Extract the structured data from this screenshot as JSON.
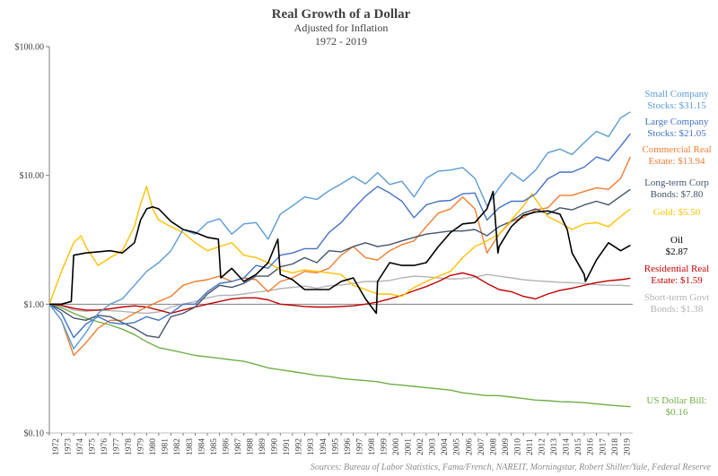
{
  "chart_data": {
    "type": "line",
    "title": "Real Growth of a Dollar",
    "subtitle": "Adjusted for Inflation",
    "period": "1972 - 2019",
    "source": "Sources: Bureau of Labor Statistics, Fama/French, NAREIT, Morningstar, Robert Shiller/Yale, Federal Reserve",
    "y_scale": "log",
    "ylim": [
      0.1,
      100
    ],
    "y_ticks": [
      "$0.10",
      "$1.00",
      "$10.00",
      "$100.00"
    ],
    "x_ticks": [
      "1972",
      "1973",
      "1974",
      "1975",
      "1976",
      "1977",
      "1978",
      "1979",
      "1980",
      "1981",
      "1982",
      "1983",
      "1984",
      "1985",
      "1986",
      "1987",
      "1988",
      "1989",
      "1990",
      "1991",
      "1992",
      "1993",
      "1994",
      "1995",
      "1996",
      "1997",
      "1998",
      "1999",
      "2000",
      "2001",
      "2002",
      "2003",
      "2004",
      "2005",
      "2006",
      "2007",
      "2008",
      "2009",
      "2010",
      "2011",
      "2012",
      "2013",
      "2014",
      "2015",
      "2016",
      "2017",
      "2018",
      "2019"
    ],
    "grid": false,
    "legend": "inline labels at right",
    "series": [
      {
        "name": "Small Company Stocks",
        "label_lines": [
          "Small Company",
          "Stocks: $31.15"
        ],
        "color": "#5b9bd5",
        "x": [
          1972,
          1973,
          1974,
          1975,
          1976,
          1977,
          1978,
          1979,
          1980,
          1981,
          1982,
          1983,
          1984,
          1985,
          1986,
          1987,
          1988,
          1989,
          1990,
          1991,
          1992,
          1993,
          1994,
          1995,
          1996,
          1997,
          1998,
          1999,
          2000,
          2001,
          2002,
          2003,
          2004,
          2005,
          2006,
          2007,
          2008,
          2009,
          2010,
          2011,
          2012,
          2013,
          2014,
          2015,
          2016,
          2017,
          2018,
          2019,
          2019.8
        ],
        "y": [
          1.0,
          0.75,
          0.45,
          0.6,
          0.85,
          1.0,
          1.1,
          1.4,
          1.8,
          2.1,
          2.6,
          3.8,
          3.5,
          4.3,
          4.6,
          3.5,
          4.2,
          4.3,
          3.2,
          5.0,
          5.8,
          6.8,
          6.5,
          7.6,
          8.6,
          9.8,
          8.6,
          10.5,
          8.5,
          9.0,
          6.8,
          9.5,
          10.8,
          11.0,
          11.5,
          9.5,
          5.8,
          8.0,
          10.5,
          9.0,
          11.0,
          15.0,
          16.0,
          14.5,
          18.0,
          22.0,
          20.0,
          28.0,
          31.15
        ]
      },
      {
        "name": "Large Company Stocks",
        "label_lines": [
          "Large Company",
          "Stocks: $21.05"
        ],
        "color": "#4472c4",
        "x": [
          1972,
          1973,
          1974,
          1975,
          1976,
          1977,
          1978,
          1979,
          1980,
          1981,
          1982,
          1983,
          1984,
          1985,
          1986,
          1987,
          1988,
          1989,
          1990,
          1991,
          1992,
          1993,
          1994,
          1995,
          1996,
          1997,
          1998,
          1999,
          2000,
          2001,
          2002,
          2003,
          2004,
          2005,
          2006,
          2007,
          2008,
          2009,
          2010,
          2011,
          2012,
          2013,
          2014,
          2015,
          2016,
          2017,
          2018,
          2019,
          2019.8
        ],
        "y": [
          1.0,
          0.85,
          0.55,
          0.7,
          0.8,
          0.72,
          0.7,
          0.72,
          0.8,
          0.75,
          0.85,
          1.0,
          1.0,
          1.25,
          1.45,
          1.5,
          1.6,
          2.0,
          1.9,
          2.4,
          2.5,
          2.7,
          2.7,
          3.6,
          4.3,
          5.5,
          6.9,
          8.2,
          7.3,
          6.3,
          4.7,
          5.9,
          6.3,
          6.4,
          7.2,
          7.3,
          4.5,
          5.6,
          6.3,
          6.3,
          7.2,
          9.4,
          10.6,
          10.6,
          11.6,
          13.9,
          13.0,
          16.9,
          21.05
        ]
      },
      {
        "name": "Commercial Real Estate",
        "label_lines": [
          "Commercial Real",
          "Estate: $13.94"
        ],
        "color": "#ed7d31",
        "x": [
          1972,
          1973,
          1974,
          1975,
          1976,
          1977,
          1978,
          1979,
          1980,
          1981,
          1982,
          1983,
          1984,
          1985,
          1986,
          1987,
          1988,
          1989,
          1990,
          1991,
          1992,
          1993,
          1994,
          1995,
          1996,
          1997,
          1998,
          1999,
          2000,
          2001,
          2002,
          2003,
          2004,
          2005,
          2006,
          2007,
          2008,
          2009,
          2010,
          2011,
          2012,
          2013,
          2014,
          2015,
          2016,
          2017,
          2018,
          2019,
          2019.8
        ],
        "y": [
          1.0,
          0.75,
          0.4,
          0.5,
          0.65,
          0.75,
          0.75,
          0.85,
          0.95,
          1.05,
          1.15,
          1.4,
          1.5,
          1.55,
          1.65,
          1.5,
          1.6,
          1.55,
          1.25,
          1.5,
          1.6,
          1.8,
          1.75,
          1.9,
          2.4,
          2.8,
          2.3,
          2.2,
          2.6,
          2.9,
          3.1,
          4.0,
          5.1,
          5.5,
          6.8,
          5.5,
          2.5,
          3.5,
          4.4,
          4.7,
          5.4,
          5.6,
          7.0,
          7.0,
          7.5,
          8.0,
          7.8,
          9.5,
          13.94
        ]
      },
      {
        "name": "Long-term Corp Bonds",
        "label_lines": [
          "Long-term Corp",
          "Bonds: $7.80"
        ],
        "color": "#44546a",
        "x": [
          1972,
          1973,
          1974,
          1975,
          1976,
          1977,
          1978,
          1979,
          1980,
          1981,
          1982,
          1983,
          1984,
          1985,
          1986,
          1987,
          1988,
          1989,
          1990,
          1991,
          1992,
          1993,
          1994,
          1995,
          1996,
          1997,
          1998,
          1999,
          2000,
          2001,
          2002,
          2003,
          2004,
          2005,
          2006,
          2007,
          2008,
          2009,
          2010,
          2011,
          2012,
          2013,
          2014,
          2015,
          2016,
          2017,
          2018,
          2019,
          2019.8
        ],
        "y": [
          1.0,
          0.9,
          0.78,
          0.75,
          0.82,
          0.8,
          0.72,
          0.65,
          0.57,
          0.55,
          0.8,
          0.85,
          0.95,
          1.2,
          1.4,
          1.35,
          1.45,
          1.65,
          1.65,
          1.95,
          2.05,
          2.3,
          2.1,
          2.6,
          2.55,
          2.8,
          3.0,
          2.8,
          2.9,
          3.1,
          3.3,
          3.5,
          3.6,
          3.7,
          3.7,
          3.8,
          3.4,
          4.0,
          4.4,
          5.1,
          5.5,
          5.0,
          5.6,
          5.4,
          5.9,
          6.3,
          5.9,
          6.9,
          7.8
        ]
      },
      {
        "name": "Gold",
        "label_lines": [
          "Gold: $5.50"
        ],
        "color": "#ffc000",
        "x": [
          1972,
          1973,
          1974,
          1974.6,
          1975,
          1976,
          1977,
          1978,
          1979,
          1979.5,
          1980,
          1980.5,
          1981,
          1982,
          1983,
          1984,
          1985,
          1986,
          1987,
          1988,
          1989,
          1990,
          1991,
          1992,
          1993,
          1994,
          1995,
          1996,
          1997,
          1998,
          1999,
          2000,
          2001,
          2002,
          2003,
          2004,
          2005,
          2006,
          2007,
          2008,
          2009,
          2010,
          2011,
          2011.7,
          2012,
          2013,
          2014,
          2015,
          2016,
          2017,
          2018,
          2019,
          2019.8
        ],
        "y": [
          1.0,
          1.8,
          3.0,
          3.4,
          2.8,
          2.0,
          2.3,
          2.6,
          4.0,
          6.0,
          8.2,
          5.5,
          4.5,
          4.0,
          3.6,
          3.0,
          2.6,
          2.8,
          3.0,
          2.4,
          2.3,
          2.1,
          1.85,
          1.75,
          1.85,
          1.8,
          1.75,
          1.7,
          1.4,
          1.3,
          1.2,
          1.2,
          1.15,
          1.35,
          1.5,
          1.65,
          1.8,
          2.3,
          2.8,
          3.1,
          3.5,
          4.5,
          5.8,
          7.2,
          6.5,
          4.8,
          4.3,
          3.8,
          4.2,
          4.3,
          4.0,
          4.8,
          5.5
        ]
      },
      {
        "name": "Oil",
        "label_lines": [
          "Oil",
          "$2.87"
        ],
        "color": "#000000",
        "x": [
          1972,
          1973,
          1973.8,
          1974,
          1975,
          1976,
          1977,
          1978,
          1979,
          1979.5,
          1980,
          1980.5,
          1981,
          1982,
          1983,
          1984,
          1985,
          1985.9,
          1986.1,
          1987,
          1988,
          1989,
          1990,
          1990.8,
          1991,
          1992,
          1993,
          1994,
          1995,
          1996,
          1997,
          1998,
          1998.9,
          1999,
          2000,
          2001,
          2002,
          2003,
          2004,
          2005,
          2006,
          2007,
          2008,
          2008.5,
          2008.9,
          2009,
          2010,
          2011,
          2012,
          2013,
          2014,
          2014.6,
          2015,
          2016,
          2016.1,
          2017,
          2018,
          2019,
          2019.8
        ],
        "y": [
          1.0,
          1.0,
          1.05,
          2.4,
          2.5,
          2.55,
          2.6,
          2.5,
          3.0,
          4.5,
          5.5,
          5.7,
          5.5,
          4.4,
          3.8,
          3.6,
          3.3,
          3.2,
          1.6,
          1.9,
          1.5,
          1.7,
          2.1,
          3.2,
          1.7,
          1.55,
          1.3,
          1.3,
          1.3,
          1.5,
          1.6,
          1.1,
          0.85,
          1.5,
          2.1,
          2.0,
          2.0,
          2.1,
          2.8,
          3.6,
          4.2,
          4.3,
          5.5,
          7.5,
          2.5,
          2.8,
          4.0,
          4.9,
          5.2,
          5.3,
          5.0,
          3.8,
          2.5,
          1.7,
          1.5,
          2.2,
          3.0,
          2.6,
          2.87
        ]
      },
      {
        "name": "Residential Real Estate",
        "label_lines": [
          "Residential Real",
          "Estate: $1.59"
        ],
        "color": "#c00000",
        "x": [
          1972,
          1973,
          1974,
          1975,
          1976,
          1977,
          1978,
          1979,
          1980,
          1981,
          1982,
          1983,
          1984,
          1985,
          1986,
          1987,
          1988,
          1989,
          1990,
          1991,
          1992,
          1993,
          1994,
          1995,
          1996,
          1997,
          1998,
          1999,
          2000,
          2001,
          2002,
          2003,
          2004,
          2005,
          2006,
          2007,
          2008,
          2009,
          2010,
          2011,
          2012,
          2013,
          2014,
          2015,
          2016,
          2017,
          2018,
          2019,
          2019.8
        ],
        "y": [
          1.0,
          0.98,
          0.93,
          0.9,
          0.9,
          0.92,
          0.95,
          0.97,
          0.95,
          0.9,
          0.85,
          0.9,
          0.95,
          1.0,
          1.05,
          1.1,
          1.12,
          1.12,
          1.08,
          1.0,
          0.98,
          0.96,
          0.95,
          0.95,
          0.96,
          0.97,
          1.0,
          1.04,
          1.1,
          1.17,
          1.27,
          1.37,
          1.5,
          1.67,
          1.75,
          1.65,
          1.45,
          1.3,
          1.25,
          1.15,
          1.1,
          1.2,
          1.28,
          1.33,
          1.4,
          1.47,
          1.52,
          1.55,
          1.59
        ]
      },
      {
        "name": "Short-term Govt Bonds",
        "label_lines": [
          "Short-term Govt",
          "Bonds: $1.38"
        ],
        "color": "#b4b4b4",
        "x": [
          1972,
          1973,
          1974,
          1975,
          1976,
          1977,
          1978,
          1979,
          1980,
          1981,
          1982,
          1983,
          1984,
          1985,
          1986,
          1987,
          1988,
          1989,
          1990,
          1991,
          1992,
          1993,
          1994,
          1995,
          1996,
          1997,
          1998,
          1999,
          2000,
          2001,
          2002,
          2003,
          2004,
          2005,
          2006,
          2007,
          2008,
          2009,
          2010,
          2011,
          2012,
          2013,
          2014,
          2015,
          2016,
          2017,
          2018,
          2019,
          2019.8
        ],
        "y": [
          1.0,
          0.97,
          0.9,
          0.88,
          0.9,
          0.89,
          0.88,
          0.86,
          0.85,
          0.87,
          0.95,
          1.0,
          1.05,
          1.12,
          1.17,
          1.17,
          1.2,
          1.24,
          1.27,
          1.32,
          1.35,
          1.38,
          1.33,
          1.39,
          1.41,
          1.45,
          1.5,
          1.5,
          1.53,
          1.6,
          1.65,
          1.63,
          1.6,
          1.57,
          1.58,
          1.62,
          1.7,
          1.65,
          1.6,
          1.55,
          1.52,
          1.5,
          1.48,
          1.47,
          1.45,
          1.42,
          1.4,
          1.4,
          1.38
        ]
      },
      {
        "name": "US Dollar Bill",
        "label_lines": [
          "US Dollar Bill:",
          "$0.16"
        ],
        "color": "#70ad47",
        "x": [
          1972,
          1973,
          1974,
          1975,
          1976,
          1977,
          1978,
          1979,
          1980,
          1981,
          1982,
          1983,
          1984,
          1985,
          1986,
          1987,
          1988,
          1989,
          1990,
          1991,
          1992,
          1993,
          1994,
          1995,
          1996,
          1997,
          1998,
          1999,
          2000,
          2001,
          2002,
          2003,
          2004,
          2005,
          2006,
          2007,
          2008,
          2009,
          2010,
          2011,
          2012,
          2013,
          2014,
          2015,
          2016,
          2017,
          2018,
          2019,
          2019.8
        ],
        "y": [
          1.0,
          0.94,
          0.85,
          0.78,
          0.73,
          0.69,
          0.64,
          0.58,
          0.51,
          0.46,
          0.44,
          0.42,
          0.4,
          0.39,
          0.38,
          0.37,
          0.36,
          0.34,
          0.32,
          0.31,
          0.3,
          0.29,
          0.28,
          0.275,
          0.265,
          0.26,
          0.255,
          0.25,
          0.24,
          0.235,
          0.23,
          0.225,
          0.22,
          0.215,
          0.205,
          0.2,
          0.195,
          0.195,
          0.19,
          0.185,
          0.18,
          0.178,
          0.175,
          0.174,
          0.172,
          0.168,
          0.165,
          0.162,
          0.16
        ]
      }
    ]
  }
}
